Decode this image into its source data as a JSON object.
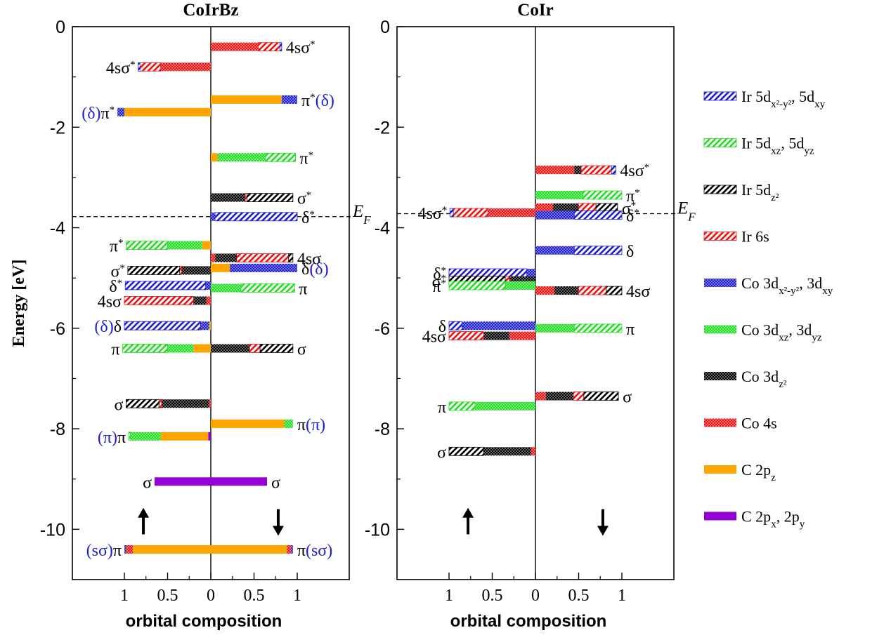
{
  "chart_data": [
    {
      "type": "bar",
      "title": "CoIrBz",
      "xlabel": "orbital composition",
      "ylabel": "Energy [eV]",
      "ylim": [
        -11,
        0
      ],
      "yticks": [
        "0",
        "-2",
        "-4",
        "-6",
        "-8",
        "-10"
      ],
      "xticks_left": [
        "1",
        "0.5",
        "0"
      ],
      "xticks_right": [
        "0.5",
        "1"
      ],
      "fermi_label": "E_F",
      "fermi_energy": -3.78,
      "spin_up_marker": "up-arrow",
      "spin_down_marker": "down-arrow",
      "levels": [
        {
          "spin": "up",
          "energy": -0.8,
          "label": "4sσ*",
          "components": [
            [
              "Co4s",
              0.58
            ],
            [
              "Ir6s",
              0.24
            ],
            [
              "Irdx2y2",
              0.02
            ]
          ]
        },
        {
          "spin": "up",
          "energy": -1.7,
          "label": "(δ)π*",
          "components": [
            [
              "C2pz",
              1.0
            ],
            [
              "Codx2y2",
              0.08
            ]
          ]
        },
        {
          "spin": "up",
          "energy": -4.35,
          "label": "π*",
          "components": [
            [
              "C2pz",
              0.1
            ],
            [
              "Codxz",
              0.4
            ],
            [
              "Irdxz",
              0.48
            ]
          ]
        },
        {
          "spin": "up",
          "energy": -4.85,
          "label": "σ*",
          "components": [
            [
              "Codz2",
              0.34
            ],
            [
              "Ir6s",
              0.02
            ],
            [
              "Irdz2",
              0.6
            ]
          ]
        },
        {
          "spin": "up",
          "energy": -5.15,
          "label": "δ*",
          "components": [
            [
              "Codx2y2",
              0.06
            ],
            [
              "Irdx2y2",
              0.93
            ]
          ]
        },
        {
          "spin": "up",
          "energy": -5.45,
          "label": "4sσ",
          "components": [
            [
              "Co4s",
              0.05
            ],
            [
              "Codz2",
              0.15
            ],
            [
              "Ir6s",
              0.8
            ]
          ]
        },
        {
          "spin": "up",
          "energy": -5.95,
          "label": "(δ)δ",
          "components": [
            [
              "C2pz",
              0.02
            ],
            [
              "Codx2y2",
              0.1
            ],
            [
              "Irdx2y2",
              0.88
            ]
          ]
        },
        {
          "spin": "up",
          "energy": -6.4,
          "label": "π",
          "components": [
            [
              "C2pz",
              0.2
            ],
            [
              "Codxz",
              0.3
            ],
            [
              "Irdxz",
              0.52
            ]
          ]
        },
        {
          "spin": "up",
          "energy": -7.5,
          "label": "σ",
          "components": [
            [
              "Co4s",
              0.02
            ],
            [
              "Codz2",
              0.55
            ],
            [
              "Ir6s",
              0.03
            ],
            [
              "Irdz2",
              0.38
            ]
          ]
        },
        {
          "spin": "up",
          "energy": -8.15,
          "label": "(π)π",
          "components": [
            [
              "C2pxy",
              0.03
            ],
            [
              "C2pz",
              0.55
            ],
            [
              "Codxz",
              0.35
            ],
            [
              "Irdxz",
              0.02
            ]
          ]
        },
        {
          "spin": "up",
          "energy": -9.05,
          "label": "σ",
          "components": [
            [
              "C2pxy",
              0.65
            ]
          ]
        },
        {
          "spin": "up",
          "energy": -10.4,
          "label": "(sσ)π",
          "components": [
            [
              "C2pz",
              0.9
            ],
            [
              "Co4s",
              0.08
            ],
            [
              "Codx2y2",
              0.02
            ]
          ]
        },
        {
          "spin": "down",
          "energy": -0.4,
          "label": "4sσ*",
          "components": [
            [
              "Co4s",
              0.55
            ],
            [
              "Ir6s",
              0.25
            ],
            [
              "Irdx2y2",
              0.02
            ]
          ]
        },
        {
          "spin": "down",
          "energy": -1.45,
          "label": "π*(δ)",
          "components": [
            [
              "C2pz",
              0.82
            ],
            [
              "Codx2y2",
              0.18
            ]
          ]
        },
        {
          "spin": "down",
          "energy": -2.6,
          "label": "π*",
          "components": [
            [
              "C2pz",
              0.08
            ],
            [
              "Codxz",
              0.55
            ],
            [
              "Irdxz",
              0.35
            ]
          ]
        },
        {
          "spin": "down",
          "energy": -3.4,
          "label": "σ*",
          "components": [
            [
              "Codz2",
              0.4
            ],
            [
              "Ir6s",
              0.02
            ],
            [
              "Irdz2",
              0.53
            ]
          ]
        },
        {
          "spin": "down",
          "energy": -3.78,
          "label": "δ*",
          "components": [
            [
              "Codx2y2",
              0.05
            ],
            [
              "Irdx2y2",
              0.95
            ]
          ]
        },
        {
          "spin": "down",
          "energy": -4.6,
          "label": "4sσ",
          "components": [
            [
              "Co4s",
              0.05
            ],
            [
              "Codz2",
              0.25
            ],
            [
              "Ir6s",
              0.6
            ],
            [
              "Irdz2",
              0.05
            ]
          ]
        },
        {
          "spin": "down",
          "energy": -4.8,
          "label": "δ(δ)",
          "components": [
            [
              "C2pz",
              0.22
            ],
            [
              "Codx2y2",
              0.78
            ]
          ]
        },
        {
          "spin": "down",
          "energy": -5.2,
          "label": "π",
          "components": [
            [
              "Codxz",
              0.35
            ],
            [
              "Irdxz",
              0.62
            ]
          ]
        },
        {
          "spin": "down",
          "energy": -6.4,
          "label": "σ",
          "components": [
            [
              "Codz2",
              0.45
            ],
            [
              "Ir6s",
              0.12
            ],
            [
              "Irdz2",
              0.38
            ]
          ]
        },
        {
          "spin": "down",
          "energy": -7.9,
          "label": "π(π)",
          "components": [
            [
              "C2pz",
              0.85
            ],
            [
              "Codxz",
              0.1
            ]
          ]
        },
        {
          "spin": "down",
          "energy": -9.05,
          "label": "σ",
          "components": [
            [
              "C2pxy",
              0.65
            ]
          ]
        },
        {
          "spin": "down",
          "energy": -10.4,
          "label": "π(sσ)",
          "components": [
            [
              "C2pz",
              0.88
            ],
            [
              "Co4s",
              0.05
            ],
            [
              "Codx2y2",
              0.02
            ]
          ]
        }
      ]
    },
    {
      "type": "bar",
      "title": "CoIr",
      "xlabel": "orbital composition",
      "ylim": [
        -11,
        0
      ],
      "yticks": [
        "0",
        "-2",
        "-4",
        "-6",
        "-8",
        "-10"
      ],
      "xticks_left": [
        "1",
        "0.5",
        "0"
      ],
      "xticks_right": [
        "0.5",
        "1"
      ],
      "fermi_label": "E_F",
      "fermi_energy": -3.72,
      "spin_up_marker": "up-arrow",
      "spin_down_marker": "down-arrow",
      "levels": [
        {
          "spin": "up",
          "energy": -3.7,
          "label": "4sσ*",
          "components": [
            [
              "Co4s",
              0.55
            ],
            [
              "Ir6s",
              0.4
            ],
            [
              "Irdx2y2",
              0.04
            ]
          ]
        },
        {
          "spin": "up",
          "energy": -4.9,
          "label": "δ*",
          "components": [
            [
              "Codx2y2",
              0.1
            ],
            [
              "Irdx2y2",
              0.9
            ]
          ]
        },
        {
          "spin": "up",
          "energy": -5.05,
          "label": "σ*",
          "components": [
            [
              "Codz2",
              0.3
            ],
            [
              "Ir6s",
              0.05
            ],
            [
              "Irdz2",
              0.65
            ]
          ]
        },
        {
          "spin": "up",
          "energy": -5.15,
          "label": "π*",
          "components": [
            [
              "Codxz",
              0.35
            ],
            [
              "Irdxz",
              0.65
            ]
          ]
        },
        {
          "spin": "up",
          "energy": -5.95,
          "label": "δ",
          "components": [
            [
              "Codx2y2",
              0.85
            ],
            [
              "Irdx2y2",
              0.15
            ]
          ]
        },
        {
          "spin": "up",
          "energy": -6.15,
          "label": "4sσ",
          "components": [
            [
              "Co4s",
              0.3
            ],
            [
              "Codz2",
              0.3
            ],
            [
              "Ir6s",
              0.4
            ]
          ]
        },
        {
          "spin": "up",
          "energy": -7.55,
          "label": "π",
          "components": [
            [
              "Codxz",
              0.7
            ],
            [
              "Irdxz",
              0.3
            ]
          ]
        },
        {
          "spin": "up",
          "energy": -8.45,
          "label": "σ",
          "components": [
            [
              "Co4s",
              0.05
            ],
            [
              "Codz2",
              0.55
            ],
            [
              "Irdz2",
              0.4
            ]
          ]
        },
        {
          "spin": "down",
          "energy": -2.85,
          "label": "4sσ*",
          "components": [
            [
              "Co4s",
              0.45
            ],
            [
              "Codz2",
              0.08
            ],
            [
              "Ir6s",
              0.35
            ],
            [
              "Irdx2y2",
              0.05
            ]
          ]
        },
        {
          "spin": "down",
          "energy": -3.35,
          "label": "π*",
          "components": [
            [
              "Codxz",
              0.55
            ],
            [
              "Irdxz",
              0.45
            ]
          ]
        },
        {
          "spin": "down",
          "energy": -3.6,
          "label": "σ*",
          "components": [
            [
              "Co4s",
              0.2
            ],
            [
              "Codz2",
              0.3
            ],
            [
              "Ir6s",
              0.2
            ],
            [
              "Irdz2",
              0.25
            ]
          ]
        },
        {
          "spin": "down",
          "energy": -3.75,
          "label": "δ*",
          "components": [
            [
              "Codx2y2",
              0.45
            ],
            [
              "Irdx2y2",
              0.55
            ]
          ]
        },
        {
          "spin": "down",
          "energy": -4.45,
          "label": "δ",
          "components": [
            [
              "Codx2y2",
              0.45
            ],
            [
              "Irdx2y2",
              0.55
            ]
          ]
        },
        {
          "spin": "down",
          "energy": -5.25,
          "label": "4sσ",
          "components": [
            [
              "Co4s",
              0.22
            ],
            [
              "Codz2",
              0.28
            ],
            [
              "Ir6s",
              0.32
            ],
            [
              "Irdz2",
              0.18
            ]
          ]
        },
        {
          "spin": "down",
          "energy": -6.0,
          "label": "π",
          "components": [
            [
              "Codxz",
              0.45
            ],
            [
              "Irdxz",
              0.55
            ]
          ]
        },
        {
          "spin": "down",
          "energy": -7.35,
          "label": "σ",
          "components": [
            [
              "Co4s",
              0.12
            ],
            [
              "Codz2",
              0.32
            ],
            [
              "Ir6s",
              0.12
            ],
            [
              "Irdz2",
              0.4
            ]
          ]
        }
      ]
    }
  ],
  "legend": [
    {
      "key": "Irdx2y2",
      "label": "Ir 5d",
      "sub": "x²-y²",
      "label2": ", 5d",
      "sub2": "xy",
      "color": "#1f1fd0",
      "pattern": "hatch"
    },
    {
      "key": "Irdxz",
      "label": "Ir 5d",
      "sub": "xz",
      "label2": ", 5d",
      "sub2": "yz",
      "color": "#22dd22",
      "pattern": "hatch"
    },
    {
      "key": "Irdz2",
      "label": "Ir 5d",
      "sub": "z²",
      "label2": "",
      "sub2": "",
      "color": "#000000",
      "pattern": "hatch"
    },
    {
      "key": "Ir6s",
      "label": "Ir 6s",
      "sub": "",
      "label2": "",
      "sub2": "",
      "color": "#ee1111",
      "pattern": "hatch"
    },
    {
      "key": "Codx2y2",
      "label": "Co 3d",
      "sub": "x²-y²",
      "label2": ", 3d",
      "sub2": "xy",
      "color": "#1f1fd0",
      "pattern": "dots"
    },
    {
      "key": "Codxz",
      "label": "Co 3d",
      "sub": "xz",
      "label2": ", 3d",
      "sub2": "yz",
      "color": "#22dd22",
      "pattern": "dots"
    },
    {
      "key": "Codz2",
      "label": "Co 3d",
      "sub": "z²",
      "label2": "",
      "sub2": "",
      "color": "#000000",
      "pattern": "dots"
    },
    {
      "key": "Co4s",
      "label": "Co 4s",
      "sub": "",
      "label2": "",
      "sub2": "",
      "color": "#ee1111",
      "pattern": "dots"
    },
    {
      "key": "C2pz",
      "label": "C 2p",
      "sub": "z",
      "label2": "",
      "sub2": "",
      "color": "#ffa500",
      "pattern": "solid"
    },
    {
      "key": "C2pxy",
      "label": "C 2p",
      "sub": "x",
      "label2": ", 2p",
      "sub2": "y",
      "color": "#9400d3",
      "pattern": "solid"
    }
  ]
}
